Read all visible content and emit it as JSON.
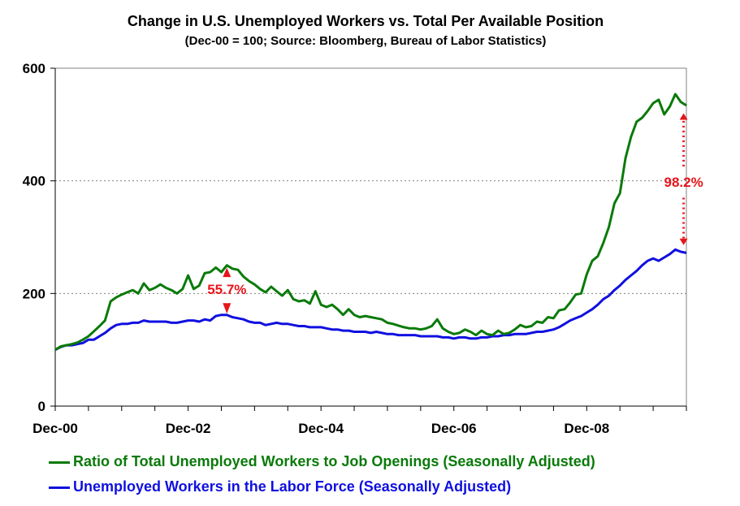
{
  "chart_data": {
    "type": "line",
    "title": "Change in U.S. Unemployed Workers vs. Total Per Available Position",
    "subtitle": "(Dec-00 = 100; Source: Bloomberg, Bureau of Labor Statistics)",
    "xlabel": "",
    "ylabel": "",
    "x_tick_labels": [
      "Dec-00",
      "Dec-02",
      "Dec-04",
      "Dec-06",
      "Dec-08"
    ],
    "y_tick_labels": [
      "0",
      "200",
      "400",
      "600"
    ],
    "ylim": [
      0,
      600
    ],
    "x_range_months": [
      0,
      114
    ],
    "grid": "horizontal dotted",
    "legend_position": "bottom",
    "series": [
      {
        "name": "Ratio of Total Unemployed Workers to Job Openings (Seasonally Adjusted)",
        "color": "#0a7a0a",
        "x": [
          0,
          1,
          2,
          3,
          4,
          5,
          6,
          7,
          8,
          9,
          10,
          11,
          12,
          13,
          14,
          15,
          16,
          17,
          18,
          19,
          20,
          21,
          22,
          23,
          24,
          25,
          26,
          27,
          28,
          29,
          30,
          31,
          32,
          33,
          34,
          35,
          36,
          37,
          38,
          39,
          40,
          41,
          42,
          43,
          44,
          45,
          46,
          47,
          48,
          49,
          50,
          51,
          52,
          53,
          54,
          55,
          56,
          57,
          58,
          59,
          60,
          61,
          62,
          63,
          64,
          65,
          66,
          67,
          68,
          69,
          70,
          71,
          72,
          73,
          74,
          75,
          76,
          77,
          78,
          79,
          80,
          81,
          82,
          83,
          84,
          85,
          86,
          87,
          88,
          89,
          90,
          91,
          92,
          93,
          94,
          95,
          96,
          97,
          98,
          99,
          100,
          101,
          102,
          103,
          104,
          105,
          106,
          107
        ],
        "values": [
          100,
          105,
          108,
          110,
          112,
          120,
          128,
          135,
          148,
          160,
          188,
          193,
          198,
          202,
          205,
          200,
          218,
          205,
          210,
          215,
          210,
          205,
          202,
          207,
          232,
          210,
          215,
          238,
          240,
          245,
          238,
          250,
          243,
          240,
          228,
          222,
          218,
          210,
          205,
          215,
          207,
          200,
          197,
          188,
          184,
          185,
          180,
          200,
          185,
          175,
          178,
          176,
          170,
          163,
          160,
          158,
          158,
          156,
          155,
          153,
          150,
          146,
          143,
          142,
          139,
          137,
          135,
          138,
          142,
          154,
          140,
          132,
          128,
          130,
          134,
          132,
          126,
          133,
          128,
          125,
          130,
          128,
          127,
          132,
          140,
          138,
          138,
          145,
          152,
          158,
          162,
          170,
          178,
          185,
          195,
          210,
          240,
          258,
          275,
          300,
          340,
          380,
          420,
          450,
          480,
          500,
          520,
          520
        ],
        "points": []
      },
      {
        "name": "Unemployed Workers in the Labor Force (Seasonally Adjusted)",
        "color": "#1010e0",
        "values": []
      }
    ],
    "annotations": [
      {
        "text": "55.7%",
        "color": "#e8141b"
      },
      {
        "text": "98.2%",
        "color": "#e8141b"
      }
    ]
  }
}
